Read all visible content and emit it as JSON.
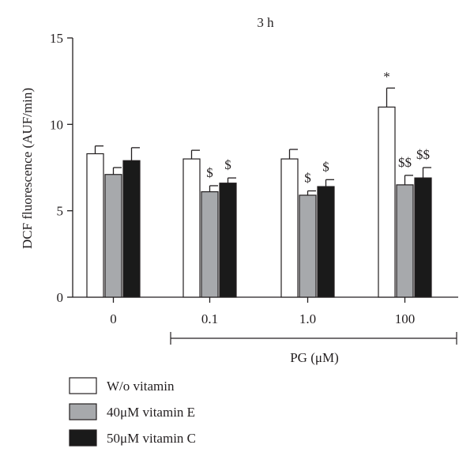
{
  "chart_data": {
    "type": "bar",
    "title": "3 h",
    "ylabel": "DCF fluorescence (AUF/min)",
    "xlabel": "PG (μM)",
    "ylim": [
      0,
      15
    ],
    "yticks": [
      0,
      5,
      10,
      15
    ],
    "categories": [
      "0",
      "0.1",
      "1.0",
      "100"
    ],
    "series": [
      {
        "name": "W/o vitamin",
        "color": "#ffffff",
        "values": [
          8.3,
          8.0,
          8.0,
          11.0
        ],
        "errors": [
          0.45,
          0.5,
          0.55,
          1.1
        ],
        "annotations": [
          "",
          "",
          "",
          "*"
        ]
      },
      {
        "name": "40μM vitamin E",
        "color": "#a7a9ac",
        "values": [
          7.1,
          6.1,
          5.9,
          6.5
        ],
        "errors": [
          0.4,
          0.35,
          0.25,
          0.55
        ],
        "annotations": [
          "",
          "$",
          "$",
          "$$"
        ]
      },
      {
        "name": "50μM vitamin C",
        "color": "#1a1a1a",
        "values": [
          7.9,
          6.6,
          6.4,
          6.9
        ],
        "errors": [
          0.75,
          0.3,
          0.4,
          0.6
        ],
        "annotations": [
          "",
          "$",
          "$",
          "$$"
        ]
      }
    ],
    "grid": false,
    "legend_position": "bottom-left"
  }
}
